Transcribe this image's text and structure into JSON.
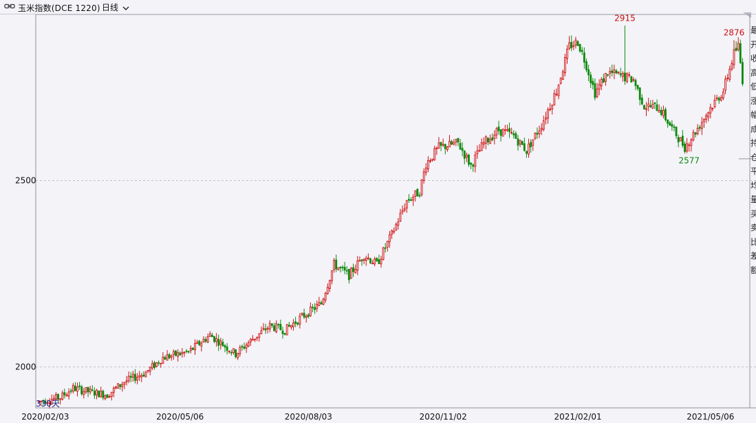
{
  "header": {
    "link_icon": "chain-link-icon",
    "title": "玉米指数(DCE 1220)",
    "period_label": "日线",
    "period_icon": "chevron-down-icon"
  },
  "colors": {
    "up": "#d01010",
    "down": "#0c8a0c",
    "grid": "#c0c0c8",
    "axis": "#909098",
    "label_low": "#0c8a0c",
    "label_high": "#cc1010",
    "days_text": "#1a1a80"
  },
  "days_label": "330天",
  "side_panel": {
    "glyphs": [
      "最",
      "开",
      "收",
      "高",
      "低",
      "涨",
      "幅",
      "成",
      "持",
      "仓",
      "平",
      "均",
      "量",
      "买",
      "卖",
      "比",
      "差",
      "额"
    ]
  },
  "chart_data": {
    "type": "candlestick",
    "title": "",
    "xlabel": "",
    "ylabel": "",
    "y_ticks": [
      2000,
      2500
    ],
    "x_ticks": [
      "2020/02/03",
      "2020/05/06",
      "2020/08/03",
      "2020/11/02",
      "2021/02/01",
      "2021/05/06"
    ],
    "ylim": [
      1890,
      2945
    ],
    "grid": true,
    "trading_days": 330,
    "annotations": [
      {
        "text": "2915",
        "value": 2915,
        "day": 274,
        "kind": "high"
      },
      {
        "text": "2577",
        "value": 2577,
        "day": 304,
        "kind": "low"
      },
      {
        "text": "2876",
        "value": 2876,
        "day": 325,
        "kind": "high"
      }
    ],
    "trend_anchors": [
      {
        "day": 0,
        "value": 1907
      },
      {
        "day": 10,
        "value": 1918
      },
      {
        "day": 16,
        "value": 1943
      },
      {
        "day": 22,
        "value": 1935
      },
      {
        "day": 32,
        "value": 1925
      },
      {
        "day": 40,
        "value": 1960
      },
      {
        "day": 50,
        "value": 1985
      },
      {
        "day": 58,
        "value": 2025
      },
      {
        "day": 70,
        "value": 2040
      },
      {
        "day": 80,
        "value": 2085
      },
      {
        "day": 86,
        "value": 2060
      },
      {
        "day": 92,
        "value": 2035
      },
      {
        "day": 100,
        "value": 2075
      },
      {
        "day": 108,
        "value": 2110
      },
      {
        "day": 115,
        "value": 2098
      },
      {
        "day": 122,
        "value": 2130
      },
      {
        "day": 132,
        "value": 2170
      },
      {
        "day": 138,
        "value": 2275
      },
      {
        "day": 145,
        "value": 2245
      },
      {
        "day": 152,
        "value": 2300
      },
      {
        "day": 158,
        "value": 2275
      },
      {
        "day": 165,
        "value": 2355
      },
      {
        "day": 172,
        "value": 2445
      },
      {
        "day": 178,
        "value": 2470
      },
      {
        "day": 181,
        "value": 2545
      },
      {
        "day": 187,
        "value": 2588
      },
      {
        "day": 196,
        "value": 2600
      },
      {
        "day": 202,
        "value": 2540
      },
      {
        "day": 208,
        "value": 2600
      },
      {
        "day": 215,
        "value": 2635
      },
      {
        "day": 222,
        "value": 2620
      },
      {
        "day": 228,
        "value": 2580
      },
      {
        "day": 235,
        "value": 2650
      },
      {
        "day": 242,
        "value": 2740
      },
      {
        "day": 248,
        "value": 2860
      },
      {
        "day": 252,
        "value": 2872
      },
      {
        "day": 256,
        "value": 2810
      },
      {
        "day": 260,
        "value": 2735
      },
      {
        "day": 266,
        "value": 2790
      },
      {
        "day": 272,
        "value": 2780
      },
      {
        "day": 278,
        "value": 2770
      },
      {
        "day": 283,
        "value": 2700
      },
      {
        "day": 290,
        "value": 2695
      },
      {
        "day": 296,
        "value": 2640
      },
      {
        "day": 302,
        "value": 2590
      },
      {
        "day": 308,
        "value": 2640
      },
      {
        "day": 314,
        "value": 2695
      },
      {
        "day": 320,
        "value": 2740
      },
      {
        "day": 325,
        "value": 2840
      },
      {
        "day": 327,
        "value": 2860
      },
      {
        "day": 329,
        "value": 2770
      }
    ]
  }
}
